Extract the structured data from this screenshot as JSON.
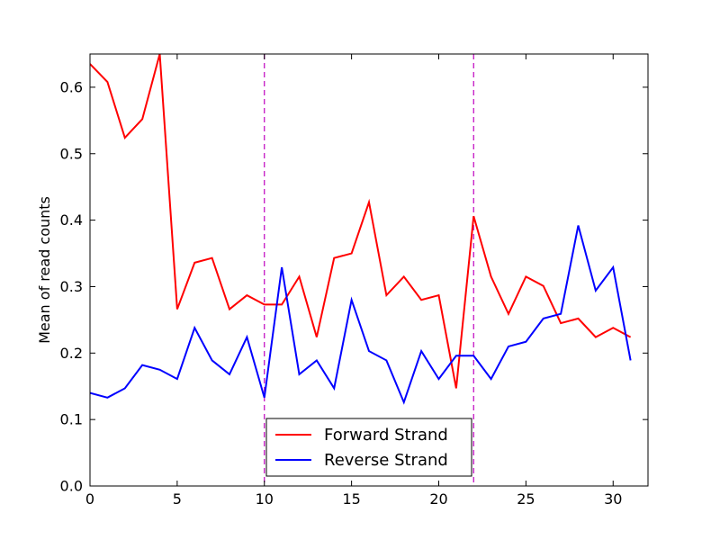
{
  "chart_data": {
    "type": "line",
    "title": "",
    "xlabel": "",
    "ylabel": "Mean of read counts",
    "xlim": [
      0,
      32
    ],
    "ylim": [
      0.0,
      0.65
    ],
    "x_ticks": [
      0,
      5,
      10,
      15,
      20,
      25,
      30
    ],
    "y_ticks": [
      0.0,
      0.1,
      0.2,
      0.3,
      0.4,
      0.5,
      0.6
    ],
    "x_tick_labels": [
      "0",
      "5",
      "10",
      "15",
      "20",
      "25",
      "30"
    ],
    "y_tick_labels": [
      "0.0",
      "0.1",
      "0.2",
      "0.3",
      "0.4",
      "0.5",
      "0.6"
    ],
    "grid": false,
    "legend_position": "bottom-center",
    "x": [
      0,
      1,
      2,
      3,
      4,
      5,
      6,
      7,
      8,
      9,
      10,
      11,
      12,
      13,
      14,
      15,
      16,
      17,
      18,
      19,
      20,
      21,
      22,
      23,
      24,
      25,
      26,
      27,
      28,
      29,
      30,
      31
    ],
    "series": [
      {
        "name": "Forward Strand",
        "color": "#ff0000",
        "values": [
          0.635,
          0.608,
          0.524,
          0.552,
          0.65,
          0.266,
          0.336,
          0.343,
          0.266,
          0.287,
          0.273,
          0.273,
          0.315,
          0.224,
          0.343,
          0.35,
          0.427,
          0.287,
          0.315,
          0.28,
          0.287,
          0.147,
          0.406,
          0.315,
          0.259,
          0.315,
          0.301,
          0.245,
          0.252,
          0.224,
          0.238,
          0.224
        ]
      },
      {
        "name": "Reverse Strand",
        "color": "#0000ff",
        "values": [
          0.14,
          0.133,
          0.147,
          0.182,
          0.175,
          0.161,
          0.238,
          0.189,
          0.168,
          0.224,
          0.133,
          0.329,
          0.168,
          0.189,
          0.147,
          0.28,
          0.203,
          0.189,
          0.126,
          0.203,
          0.161,
          0.196,
          0.196,
          0.161,
          0.21,
          0.217,
          0.252,
          0.259,
          0.392,
          0.294,
          0.329,
          0.189
        ]
      }
    ],
    "vertical_lines": [
      {
        "x": 10,
        "color": "#bf00bf",
        "style": "dashed"
      },
      {
        "x": 22,
        "color": "#bf00bf",
        "style": "dashed"
      }
    ]
  }
}
